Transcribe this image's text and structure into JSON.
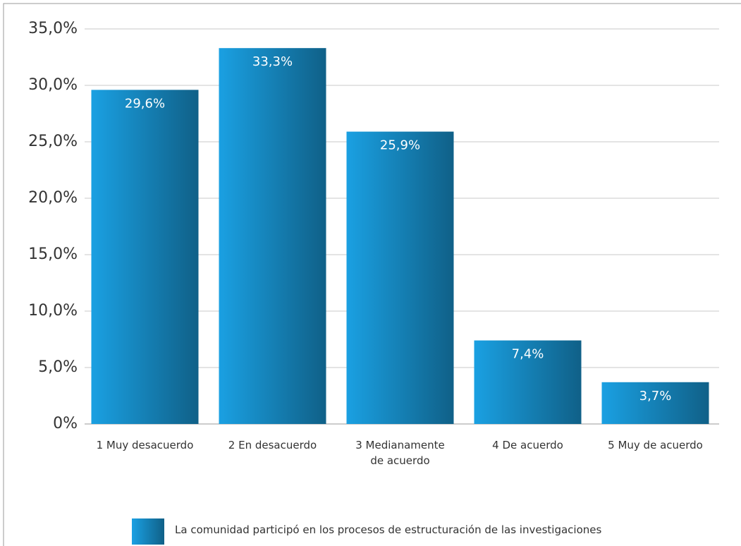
{
  "chart_data": {
    "type": "bar",
    "categories": [
      "1 Muy desacuerdo",
      "2 En desacuerdo",
      "3 Medianamente de acuerdo",
      "4  De acuerdo",
      "5  Muy de acuerdo"
    ],
    "series": [
      {
        "name": "La comunidad participó en los procesos de estructuración de las investigaciones",
        "color": "#1aa0e2",
        "values": [
          29.6,
          33.3,
          25.9,
          7.4,
          3.7
        ],
        "value_labels": [
          "29,6%",
          "33,3%",
          "25,9%",
          "7,4%",
          "3,7%"
        ]
      }
    ],
    "ylim": [
      0,
      35
    ],
    "yticks": [
      {
        "value": 0,
        "label": "0%"
      },
      {
        "value": 5,
        "label": "5,0%"
      },
      {
        "value": 10,
        "label": "10,0%"
      },
      {
        "value": 15,
        "label": "15,0%"
      },
      {
        "value": 20,
        "label": "20,0%"
      },
      {
        "value": 25,
        "label": "25,0%"
      },
      {
        "value": 30,
        "label": "30,0%"
      },
      {
        "value": 35,
        "label": "35,0%"
      }
    ],
    "grid": true,
    "legend": "bottom"
  }
}
